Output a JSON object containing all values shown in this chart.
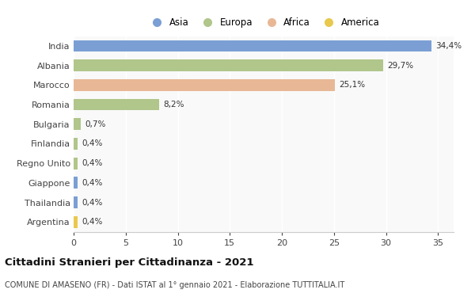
{
  "countries": [
    "India",
    "Albania",
    "Marocco",
    "Romania",
    "Bulgaria",
    "Finlandia",
    "Regno Unito",
    "Giappone",
    "Thailandia",
    "Argentina"
  ],
  "values": [
    34.4,
    29.7,
    25.1,
    8.2,
    0.7,
    0.4,
    0.4,
    0.4,
    0.4,
    0.4
  ],
  "labels": [
    "34,4%",
    "29,7%",
    "25,1%",
    "8,2%",
    "0,7%",
    "0,4%",
    "0,4%",
    "0,4%",
    "0,4%",
    "0,4%"
  ],
  "continents": [
    "Asia",
    "Europa",
    "Africa",
    "Europa",
    "Europa",
    "Europa",
    "Europa",
    "Asia",
    "Asia",
    "America"
  ],
  "colors": {
    "Asia": "#7b9fd4",
    "Europa": "#b0c68a",
    "Africa": "#e8b896",
    "America": "#e8c94e"
  },
  "legend_labels": [
    "Asia",
    "Europa",
    "Africa",
    "America"
  ],
  "legend_colors": [
    "#7b9fd4",
    "#b0c68a",
    "#e8b896",
    "#e8c94e"
  ],
  "xlim": [
    0,
    36.5
  ],
  "xticks": [
    0,
    5,
    10,
    15,
    20,
    25,
    30,
    35
  ],
  "title": "Cittadini Stranieri per Cittadinanza - 2021",
  "subtitle": "COMUNE DI AMASENO (FR) - Dati ISTAT al 1° gennaio 2021 - Elaborazione TUTTITALIA.IT",
  "bg_color": "#ffffff",
  "bar_height": 0.6
}
